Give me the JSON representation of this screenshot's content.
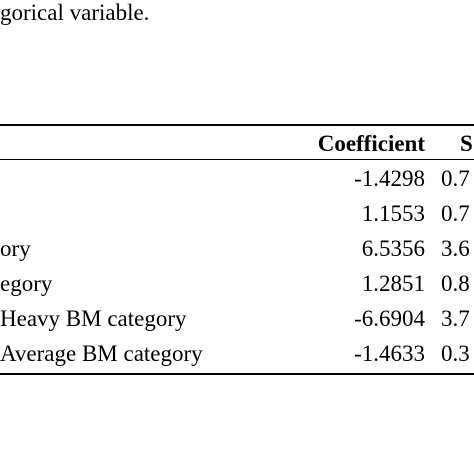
{
  "caption": "gorical variable.",
  "table": {
    "header": {
      "coefficient": "Coefficient",
      "se": "S"
    },
    "rows": [
      {
        "coefficient": "-1.4298",
        "se": "0.7"
      },
      {
        "coefficient": "1.1553",
        "se": "0.7"
      },
      {
        "label": "ory",
        "coefficient": "6.5356",
        "se": "3.6"
      },
      {
        "label": "egory",
        "coefficient": "1.2851",
        "se": "0.8"
      },
      {
        "label": "Heavy BM category",
        "coefficient": "-6.6904",
        "se": "3.7"
      },
      {
        "label": "Average BM category",
        "coefficient": "-1.4633",
        "se": "0.3"
      }
    ]
  }
}
